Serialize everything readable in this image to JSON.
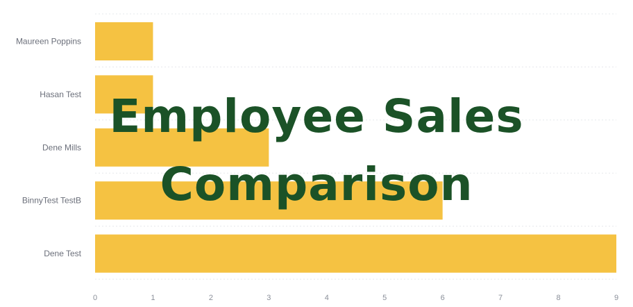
{
  "overlay": {
    "line1": "Employee Sales",
    "line2": "Comparison"
  },
  "colors": {
    "bar": "#f5c242",
    "grid": "#e6e8ec"
  },
  "chart_data": {
    "type": "bar",
    "orientation": "horizontal",
    "categories": [
      "Maureen Poppins",
      "Hasan Test",
      "Dene Mills",
      "BinnyTest TestB",
      "Dene Test"
    ],
    "values": [
      1,
      1,
      3,
      6,
      9
    ],
    "xlim": [
      0,
      9
    ],
    "xticks": [
      "0",
      "1",
      "2",
      "3",
      "4",
      "5",
      "6",
      "7",
      "8",
      "9"
    ],
    "grid": true
  }
}
